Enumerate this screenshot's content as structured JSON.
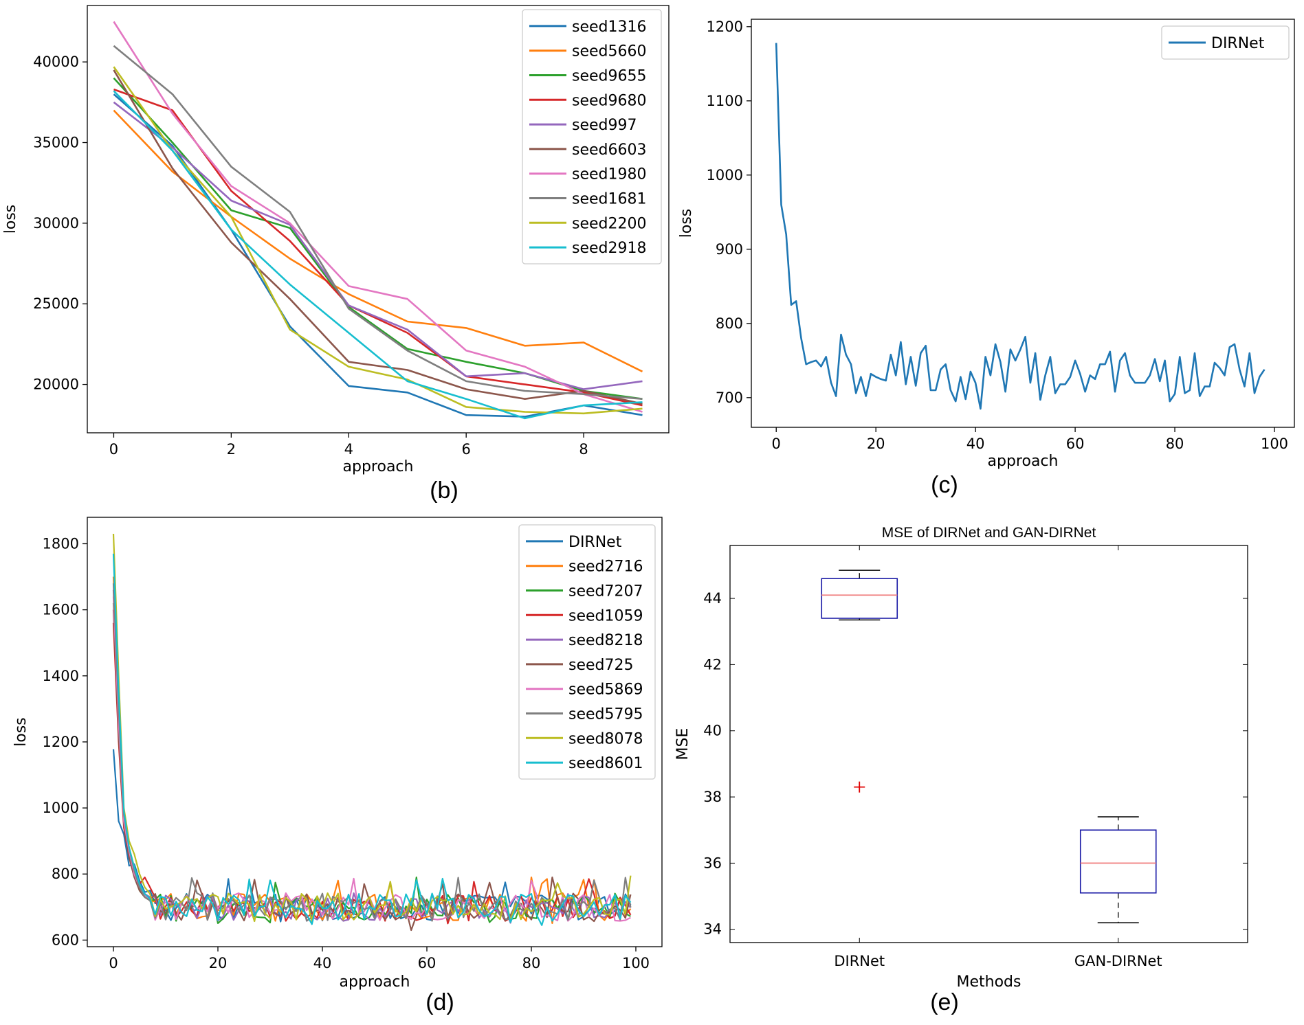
{
  "chart_data": [
    {
      "id": "b",
      "type": "line",
      "caption": "(b)",
      "xlabel": "approach",
      "ylabel": "loss",
      "xlim": [
        -0.45,
        9.45
      ],
      "ylim": [
        17000,
        43500
      ],
      "xticks": [
        0,
        2,
        4,
        6,
        8
      ],
      "yticks": [
        20000,
        25000,
        30000,
        35000,
        40000
      ],
      "legend_position": "top-right",
      "x": [
        0,
        1,
        2,
        3,
        4,
        5,
        6,
        7,
        8,
        9
      ],
      "series": [
        {
          "name": "seed1316",
          "color": "#1f77b4",
          "values": [
            38000,
            34800,
            29600,
            23600,
            19900,
            19500,
            18100,
            18000,
            18700,
            18100
          ]
        },
        {
          "name": "seed5660",
          "color": "#ff7f0e",
          "values": [
            37000,
            33200,
            30400,
            27800,
            25600,
            23900,
            23500,
            22400,
            22600,
            20800
          ]
        },
        {
          "name": "seed9655",
          "color": "#2ca02c",
          "values": [
            39000,
            35000,
            30800,
            29700,
            24800,
            22200,
            21400,
            20700,
            19600,
            19100
          ]
        },
        {
          "name": "seed9680",
          "color": "#d62728",
          "values": [
            38300,
            37000,
            32000,
            28900,
            24900,
            23200,
            20500,
            20000,
            19500,
            18700
          ]
        },
        {
          "name": "seed997",
          "color": "#9467bd",
          "values": [
            37500,
            34700,
            31400,
            29900,
            24900,
            23400,
            20500,
            20700,
            19700,
            20200
          ]
        },
        {
          "name": "seed6603",
          "color": "#8c564b",
          "values": [
            39500,
            33400,
            28800,
            25300,
            21400,
            20900,
            19700,
            19100,
            19600,
            18800
          ]
        },
        {
          "name": "seed1980",
          "color": "#e377c2",
          "values": [
            42500,
            36800,
            32300,
            30000,
            26100,
            25300,
            22100,
            21100,
            19400,
            18300
          ]
        },
        {
          "name": "seed1681",
          "color": "#7f7f7f",
          "values": [
            41000,
            38000,
            33500,
            30700,
            24700,
            22100,
            20200,
            19600,
            19400,
            19100
          ]
        },
        {
          "name": "seed2200",
          "color": "#bcbd22",
          "values": [
            39700,
            34500,
            30400,
            23400,
            21100,
            20300,
            18600,
            18300,
            18200,
            18500
          ]
        },
        {
          "name": "seed2918",
          "color": "#17becf",
          "values": [
            38200,
            34500,
            29600,
            26200,
            23200,
            20200,
            19100,
            17900,
            18700,
            18900
          ]
        }
      ]
    },
    {
      "id": "c",
      "type": "line",
      "caption": "(c)",
      "xlabel": "approach",
      "ylabel": "loss",
      "xlim": [
        -5,
        104
      ],
      "ylim": [
        660,
        1210
      ],
      "xticks": [
        0,
        20,
        40,
        60,
        80,
        100
      ],
      "yticks": [
        700,
        800,
        900,
        1000,
        1100,
        1200
      ],
      "legend_position": "top-right",
      "series": [
        {
          "name": "DIRNet",
          "color": "#1f77b4",
          "values": [
            1178,
            960,
            920,
            825,
            830,
            780,
            745,
            748,
            750,
            742,
            755,
            720,
            702,
            785,
            758,
            745,
            706,
            728,
            702,
            732,
            728,
            725,
            723,
            758,
            730,
            775,
            718,
            755,
            716,
            760,
            770,
            710,
            710,
            738,
            745,
            710,
            695,
            728,
            698,
            735,
            720,
            685,
            755,
            730,
            772,
            748,
            708,
            765,
            750,
            765,
            782,
            720,
            760,
            697,
            730,
            755,
            706,
            718,
            718,
            728,
            750,
            732,
            708,
            730,
            725,
            745,
            745,
            762,
            708,
            750,
            760,
            730,
            720,
            720,
            720,
            730,
            752,
            722,
            750,
            695,
            705,
            755,
            706,
            710,
            760,
            702,
            715,
            715,
            747,
            740,
            730,
            768,
            772,
            738,
            715,
            760,
            706,
            728,
            738
          ]
        }
      ]
    },
    {
      "id": "d",
      "type": "line",
      "caption": "(d)",
      "xlabel": "approach",
      "ylabel": "loss",
      "xlim": [
        -5,
        105
      ],
      "ylim": [
        580,
        1880
      ],
      "xticks": [
        0,
        20,
        40,
        60,
        80,
        100
      ],
      "yticks": [
        600,
        800,
        1000,
        1200,
        1400,
        1600,
        1800
      ],
      "legend_position": "top-right",
      "series": [
        {
          "name": "DIRNet",
          "color": "#1f77b4",
          "start": [
            1178,
            960,
            920,
            825,
            830,
            780,
            745,
            750
          ]
        },
        {
          "name": "seed2716",
          "color": "#ff7f0e",
          "start": [
            1700,
            1300,
            980,
            880,
            820,
            760,
            730,
            720
          ]
        },
        {
          "name": "seed7207",
          "color": "#2ca02c",
          "start": [
            1620,
            1250,
            960,
            860,
            800,
            750,
            730,
            720
          ]
        },
        {
          "name": "seed1059",
          "color": "#d62728",
          "start": [
            1560,
            1200,
            940,
            850,
            800,
            770,
            790,
            760
          ]
        },
        {
          "name": "seed8218",
          "color": "#9467bd",
          "start": [
            1660,
            1280,
            970,
            860,
            800,
            760,
            740,
            730
          ]
        },
        {
          "name": "seed725",
          "color": "#8c564b",
          "start": [
            1600,
            1220,
            950,
            850,
            790,
            750,
            730,
            720
          ]
        },
        {
          "name": "seed5869",
          "color": "#e377c2",
          "start": [
            1640,
            1260,
            960,
            870,
            800,
            760,
            735,
            725
          ]
        },
        {
          "name": "seed5795",
          "color": "#7f7f7f",
          "start": [
            1680,
            1300,
            980,
            880,
            810,
            760,
            730,
            720
          ]
        },
        {
          "name": "seed8078",
          "color": "#bcbd22",
          "start": [
            1830,
            1400,
            1000,
            900,
            860,
            800,
            760,
            740
          ]
        },
        {
          "name": "seed8601",
          "color": "#17becf",
          "start": [
            1770,
            1350,
            990,
            880,
            820,
            770,
            740,
            725
          ]
        }
      ],
      "steady_state_range": [
        650,
        790
      ]
    },
    {
      "id": "e",
      "type": "box",
      "caption": "(e)",
      "title": "MSE of DIRNet and GAN-DIRNet",
      "xlabel": "Methods",
      "ylabel": "MSE",
      "ylim": [
        33.6,
        45.6
      ],
      "yticks": [
        34,
        36,
        38,
        40,
        42,
        44
      ],
      "categories": [
        "DIRNet",
        "GAN-DIRNet"
      ],
      "boxes": [
        {
          "name": "DIRNet",
          "whisker_low": 43.35,
          "q1": 43.4,
          "median": 44.1,
          "q3": 44.6,
          "whisker_high": 44.85,
          "outliers": [
            38.3
          ]
        },
        {
          "name": "GAN-DIRNet",
          "whisker_low": 34.2,
          "q1": 35.1,
          "median": 36.0,
          "q3": 37.0,
          "whisker_high": 37.4,
          "outliers": []
        }
      ]
    }
  ]
}
